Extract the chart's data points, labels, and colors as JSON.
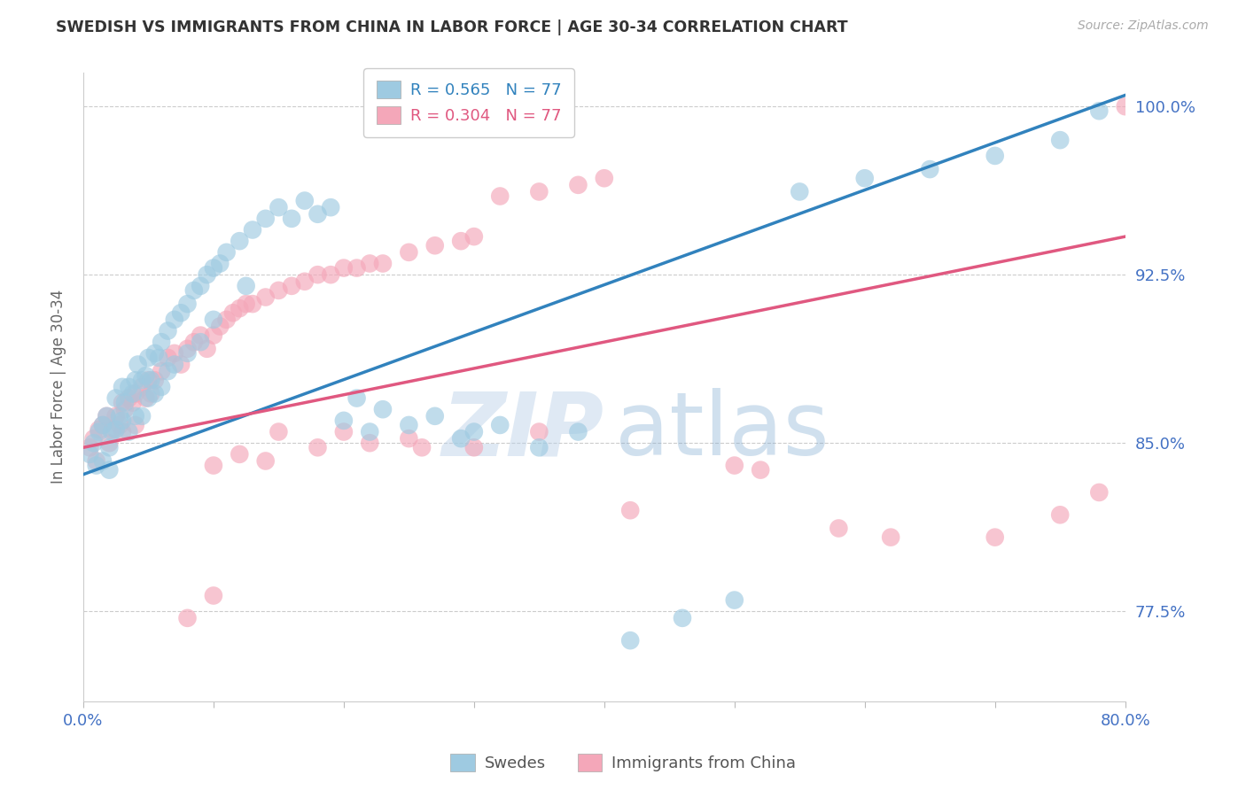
{
  "title": "SWEDISH VS IMMIGRANTS FROM CHINA IN LABOR FORCE | AGE 30-34 CORRELATION CHART",
  "source": "Source: ZipAtlas.com",
  "ylabel": "In Labor Force | Age 30-34",
  "xlim": [
    0.0,
    0.8
  ],
  "ylim": [
    0.735,
    1.015
  ],
  "yticks": [
    0.775,
    0.85,
    0.925,
    1.0
  ],
  "ytick_labels": [
    "77.5%",
    "85.0%",
    "92.5%",
    "100.0%"
  ],
  "xticks": [
    0.0,
    0.1,
    0.2,
    0.3,
    0.4,
    0.5,
    0.6,
    0.7,
    0.8
  ],
  "xtick_labels": [
    "0.0%",
    "",
    "",
    "",
    "",
    "",
    "",
    "",
    "80.0%"
  ],
  "blue_r": "R = 0.565",
  "blue_n": "N = 77",
  "pink_r": "R = 0.304",
  "pink_n": "N = 77",
  "legend_swedes": "Swedes",
  "legend_immigrants": "Immigrants from China",
  "blue_color": "#9ecae1",
  "pink_color": "#f4a7b9",
  "blue_line_color": "#3182bd",
  "pink_line_color": "#e05880",
  "title_color": "#333333",
  "axis_label_color": "#666666",
  "tick_color": "#4472c4",
  "grid_color": "#cccccc",
  "watermark_zip": "ZIP",
  "watermark_atlas": "atlas",
  "blue_line_x": [
    0.0,
    0.8
  ],
  "blue_line_y": [
    0.836,
    1.005
  ],
  "pink_line_x": [
    0.0,
    0.8
  ],
  "pink_line_y": [
    0.848,
    0.942
  ],
  "blue_x": [
    0.005,
    0.008,
    0.01,
    0.012,
    0.015,
    0.015,
    0.018,
    0.02,
    0.02,
    0.022,
    0.025,
    0.025,
    0.028,
    0.03,
    0.03,
    0.032,
    0.035,
    0.035,
    0.038,
    0.04,
    0.04,
    0.042,
    0.045,
    0.045,
    0.048,
    0.05,
    0.05,
    0.052,
    0.055,
    0.055,
    0.058,
    0.06,
    0.06,
    0.065,
    0.065,
    0.07,
    0.07,
    0.075,
    0.08,
    0.08,
    0.085,
    0.09,
    0.09,
    0.095,
    0.1,
    0.1,
    0.105,
    0.11,
    0.12,
    0.125,
    0.13,
    0.14,
    0.15,
    0.16,
    0.17,
    0.18,
    0.19,
    0.2,
    0.21,
    0.22,
    0.23,
    0.25,
    0.27,
    0.29,
    0.3,
    0.32,
    0.35,
    0.38,
    0.42,
    0.46,
    0.5,
    0.55,
    0.6,
    0.65,
    0.7,
    0.75,
    0.78
  ],
  "blue_y": [
    0.845,
    0.85,
    0.84,
    0.855,
    0.858,
    0.842,
    0.862,
    0.848,
    0.838,
    0.855,
    0.87,
    0.856,
    0.862,
    0.875,
    0.86,
    0.868,
    0.875,
    0.855,
    0.872,
    0.878,
    0.862,
    0.885,
    0.878,
    0.862,
    0.88,
    0.888,
    0.87,
    0.878,
    0.89,
    0.872,
    0.888,
    0.895,
    0.875,
    0.9,
    0.882,
    0.905,
    0.885,
    0.908,
    0.912,
    0.89,
    0.918,
    0.92,
    0.895,
    0.925,
    0.928,
    0.905,
    0.93,
    0.935,
    0.94,
    0.92,
    0.945,
    0.95,
    0.955,
    0.95,
    0.958,
    0.952,
    0.955,
    0.86,
    0.87,
    0.855,
    0.865,
    0.858,
    0.862,
    0.852,
    0.855,
    0.858,
    0.848,
    0.855,
    0.762,
    0.772,
    0.78,
    0.962,
    0.968,
    0.972,
    0.978,
    0.985,
    0.998
  ],
  "pink_x": [
    0.005,
    0.008,
    0.01,
    0.012,
    0.015,
    0.018,
    0.02,
    0.022,
    0.025,
    0.028,
    0.03,
    0.03,
    0.032,
    0.035,
    0.038,
    0.04,
    0.04,
    0.045,
    0.048,
    0.05,
    0.052,
    0.055,
    0.06,
    0.065,
    0.07,
    0.075,
    0.08,
    0.085,
    0.09,
    0.095,
    0.1,
    0.105,
    0.11,
    0.115,
    0.12,
    0.125,
    0.13,
    0.14,
    0.15,
    0.16,
    0.17,
    0.18,
    0.19,
    0.2,
    0.21,
    0.22,
    0.23,
    0.25,
    0.27,
    0.29,
    0.3,
    0.32,
    0.35,
    0.38,
    0.4,
    0.15,
    0.2,
    0.25,
    0.3,
    0.35,
    0.1,
    0.12,
    0.14,
    0.18,
    0.22,
    0.26,
    0.42,
    0.5,
    0.52,
    0.58,
    0.62,
    0.7,
    0.75,
    0.78,
    0.8,
    0.1,
    0.08
  ],
  "pink_y": [
    0.848,
    0.852,
    0.842,
    0.856,
    0.858,
    0.862,
    0.85,
    0.856,
    0.862,
    0.858,
    0.868,
    0.855,
    0.865,
    0.87,
    0.868,
    0.872,
    0.858,
    0.875,
    0.87,
    0.878,
    0.872,
    0.878,
    0.882,
    0.888,
    0.89,
    0.885,
    0.892,
    0.895,
    0.898,
    0.892,
    0.898,
    0.902,
    0.905,
    0.908,
    0.91,
    0.912,
    0.912,
    0.915,
    0.918,
    0.92,
    0.922,
    0.925,
    0.925,
    0.928,
    0.928,
    0.93,
    0.93,
    0.935,
    0.938,
    0.94,
    0.942,
    0.96,
    0.962,
    0.965,
    0.968,
    0.855,
    0.855,
    0.852,
    0.848,
    0.855,
    0.84,
    0.845,
    0.842,
    0.848,
    0.85,
    0.848,
    0.82,
    0.84,
    0.838,
    0.812,
    0.808,
    0.808,
    0.818,
    0.828,
    1.0,
    0.782,
    0.772
  ]
}
